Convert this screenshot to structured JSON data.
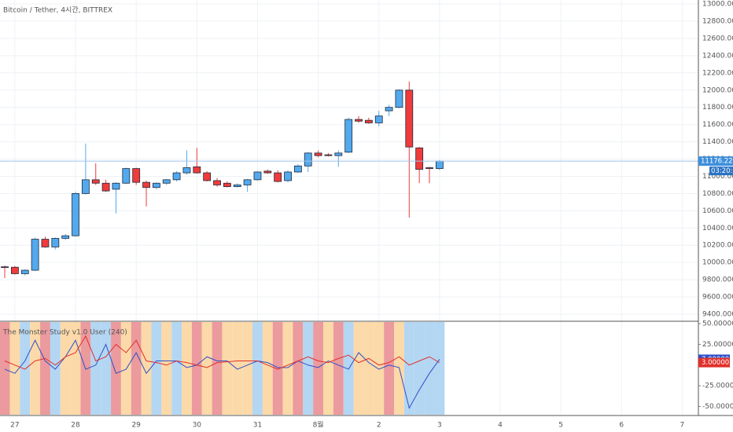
{
  "chart_data": [
    {
      "type": "candlestick",
      "title": "Bitcoin / Tether, 4시간, BITTREX",
      "x": [
        0,
        1,
        2,
        3,
        4,
        5,
        6,
        7,
        8,
        9,
        10,
        11,
        12,
        13,
        14,
        15,
        16,
        17,
        18,
        19,
        20,
        21,
        22,
        23,
        24,
        25,
        26,
        27,
        28,
        29,
        30,
        31,
        32,
        33,
        34,
        35,
        36,
        37,
        38,
        39,
        40,
        41,
        42,
        43
      ],
      "open": [
        9950,
        9945,
        9870,
        9910,
        10270,
        10180,
        10280,
        10310,
        10800,
        10960,
        10920,
        10850,
        10920,
        11090,
        10930,
        10870,
        10920,
        10960,
        11040,
        11110,
        11040,
        10950,
        10920,
        10880,
        10900,
        10960,
        11060,
        11040,
        10950,
        11050,
        11120,
        11270,
        11250,
        11240,
        11280,
        11660,
        11650,
        11620,
        11760,
        11800,
        12000,
        11330,
        11100,
        11090
      ],
      "high": [
        9965,
        9960,
        9920,
        10290,
        10300,
        10290,
        10330,
        10820,
        11380,
        11150,
        10960,
        10930,
        11100,
        11100,
        10950,
        10930,
        10970,
        11060,
        11300,
        11330,
        11060,
        10980,
        10940,
        10920,
        10970,
        11060,
        11080,
        11070,
        11070,
        11140,
        11280,
        11300,
        11270,
        11300,
        11680,
        11700,
        11680,
        11760,
        11830,
        12010,
        12100,
        11340,
        11110,
        11190
      ],
      "low": [
        9820,
        9860,
        9850,
        9900,
        10170,
        10150,
        10260,
        10300,
        10790,
        10900,
        10820,
        10570,
        10910,
        10900,
        10650,
        10850,
        10900,
        10940,
        11020,
        11030,
        10940,
        10880,
        10870,
        10870,
        10820,
        10950,
        11030,
        10930,
        10930,
        11040,
        11050,
        11220,
        11230,
        11110,
        11270,
        11620,
        11610,
        11580,
        11700,
        11790,
        10520,
        10920,
        10920,
        11070
      ],
      "close": [
        9945,
        9870,
        9910,
        10270,
        10180,
        10280,
        10310,
        10800,
        10960,
        10920,
        10830,
        10920,
        11090,
        10930,
        10870,
        10920,
        10960,
        11040,
        11100,
        11040,
        10950,
        10900,
        10880,
        10900,
        10960,
        11050,
        11040,
        10940,
        11050,
        11120,
        11270,
        11240,
        11240,
        11270,
        11660,
        11640,
        11620,
        11700,
        11800,
        12000,
        11340,
        11080,
        11090,
        11176.22
      ],
      "up_color": "#53a9ee",
      "down_color": "#ef3b3b",
      "last_price": {
        "value": 11176.22,
        "label": "11176.22000"
      },
      "countdown": "03:20:51",
      "xlim": [
        -0.47,
        68.6
      ],
      "xticks": [
        {
          "value": 1,
          "label": "27"
        },
        {
          "value": 7,
          "label": "28"
        },
        {
          "value": 13,
          "label": "29"
        },
        {
          "value": 19,
          "label": "30"
        },
        {
          "value": 25,
          "label": "31"
        },
        {
          "value": 31,
          "label": "8월"
        },
        {
          "value": 37,
          "label": "2"
        },
        {
          "value": 43,
          "label": "3"
        },
        {
          "value": 49,
          "label": "4"
        },
        {
          "value": 55,
          "label": "5"
        },
        {
          "value": 61,
          "label": "6"
        },
        {
          "value": 67,
          "label": "7"
        }
      ],
      "ylim": [
        9327,
        13046
      ],
      "yticks": [
        {
          "value": 9400,
          "label": "9400.00000"
        },
        {
          "value": 9600,
          "label": "9600.00000"
        },
        {
          "value": 9800,
          "label": "9800.00000"
        },
        {
          "value": 10000,
          "label": "10000.00000"
        },
        {
          "value": 10200,
          "label": "10200.00000"
        },
        {
          "value": 10400,
          "label": "10400.00000"
        },
        {
          "value": 10600,
          "label": "10600.00000"
        },
        {
          "value": 10800,
          "label": "10800.00000"
        },
        {
          "value": 11000,
          "label": "11000.00000"
        },
        {
          "value": 11200,
          "label": "11200.00000"
        },
        {
          "value": 11400,
          "label": "11400.00000"
        },
        {
          "value": 11600,
          "label": "11600.00000"
        },
        {
          "value": 11800,
          "label": "11800.00000"
        },
        {
          "value": 12000,
          "label": "12000.00000"
        },
        {
          "value": 12200,
          "label": "12200.00000"
        },
        {
          "value": 12400,
          "label": "12400.00000"
        },
        {
          "value": 12600,
          "label": "12600.00000"
        },
        {
          "value": 12800,
          "label": "12800.00000"
        },
        {
          "value": 13000,
          "label": "13000.00000"
        }
      ],
      "grid": true
    },
    {
      "type": "line",
      "title": "The Monster Study v1.0 User (240)",
      "band_colors": [
        "#eb9a9e",
        "#fcd9a8",
        "#b3d6f3",
        "#fcd9a8",
        "#eb9a9e",
        "#b3d6f3",
        "#fcd9a8",
        "#fcd9a8",
        "#eb9a9e",
        "#b3d6f3",
        "#b3d6f3",
        "#eb9a9e",
        "#fcd9a8",
        "#eb9a9e",
        "#fcd9a8",
        "#b3d6f3",
        "#fcd9a8",
        "#b3d6f3",
        "#fcd9a8",
        "#eb9a9e",
        "#fcd9a8",
        "#eb9a9e",
        "#fcd9a8",
        "#fcd9a8",
        "#fcd9a8",
        "#b3d6f3",
        "#fcd9a8",
        "#eb9a9e",
        "#fcd9a8",
        "#eb9a9e",
        "#b3d6f3",
        "#eb9a9e",
        "#fcd9a8",
        "#eb9a9e",
        "#b3d6f3",
        "#fcd9a8",
        "#fcd9a8",
        "#fcd9a8",
        "#eb9a9e",
        "#fcd9a8",
        "#b3d6f3",
        "#b3d6f3",
        "#b3d6f3",
        "#b3d6f3"
      ],
      "series": [
        {
          "color": "#2f4fc8",
          "values": [
            -5,
            -10,
            5,
            30,
            5,
            -5,
            10,
            30,
            -5,
            0,
            25,
            -10,
            -5,
            15,
            -10,
            5,
            5,
            5,
            -3,
            0,
            10,
            5,
            5,
            -5,
            0,
            5,
            3,
            -3,
            -3,
            5,
            0,
            -3,
            5,
            0,
            -5,
            15,
            3,
            -5,
            0,
            -3,
            -52,
            -30,
            -10,
            7
          ],
          "value_labels": [
            null,
            null,
            null,
            null,
            null,
            null,
            null,
            null,
            null,
            null,
            null,
            null,
            null,
            null,
            null,
            null,
            null,
            null,
            null,
            null,
            null,
            null,
            null,
            null,
            null,
            null,
            null,
            null,
            null,
            null,
            null,
            null,
            null,
            null,
            null,
            null,
            null,
            null,
            null,
            null,
            null,
            null,
            null,
            "7.00000"
          ]
        },
        {
          "color": "#e0302a",
          "values": [
            5,
            0,
            -5,
            5,
            8,
            0,
            10,
            15,
            35,
            5,
            10,
            25,
            15,
            30,
            5,
            3,
            0,
            5,
            3,
            0,
            -3,
            3,
            4,
            5,
            5,
            5,
            0,
            -5,
            0,
            5,
            10,
            5,
            3,
            8,
            12,
            3,
            8,
            0,
            3,
            10,
            0,
            5,
            10,
            3
          ],
          "value_labels": [
            null,
            null,
            null,
            null,
            null,
            null,
            null,
            null,
            null,
            null,
            null,
            null,
            null,
            null,
            null,
            null,
            null,
            null,
            null,
            null,
            null,
            null,
            null,
            null,
            null,
            null,
            null,
            null,
            null,
            null,
            null,
            null,
            null,
            null,
            null,
            null,
            null,
            null,
            null,
            null,
            null,
            null,
            null,
            "3.00000"
          ]
        }
      ],
      "ylim": [
        -60,
        52
      ],
      "yticks": [
        {
          "value": -50,
          "label": "-50.00000"
        },
        {
          "value": -25,
          "label": "-25.00000"
        },
        {
          "value": 25,
          "label": "25.00000"
        },
        {
          "value": 50,
          "label": "50.00000"
        }
      ]
    }
  ]
}
